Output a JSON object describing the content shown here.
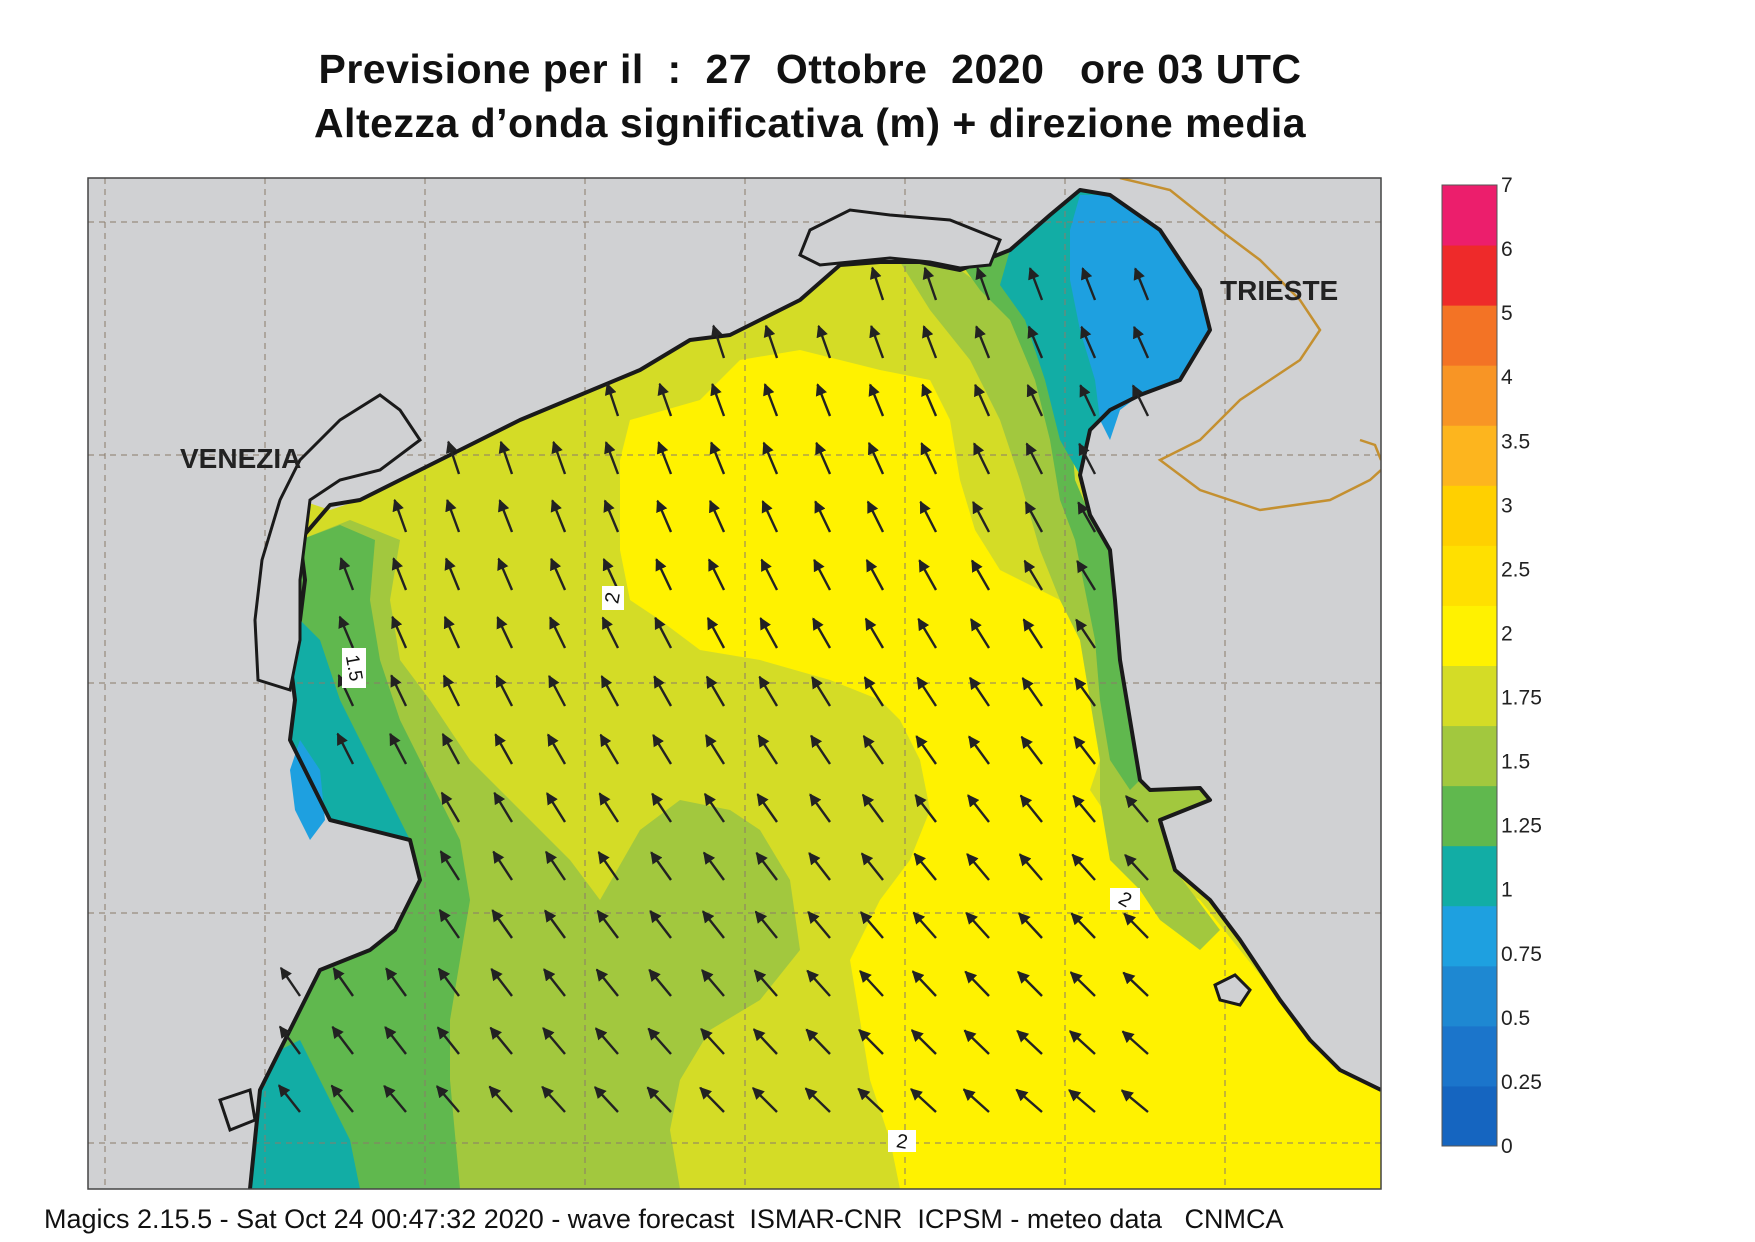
{
  "header": {
    "title_line1": "Previsione per il  :  27  Ottobre  2020   ore 03 UTC",
    "title_line2": "Altezza d’onda significativa (m) + direzione media"
  },
  "labels": {
    "city_venezia": "VENEZIA",
    "city_trieste": "TRIESTE",
    "contour_2_a": "2",
    "contour_1_5": "1.5",
    "contour_2_b": "2",
    "contour_2_c": "2"
  },
  "colorbar": {
    "ticks": [
      "7",
      "6",
      "5",
      "4",
      "3.5",
      "3",
      "2.5",
      "2",
      "1.75",
      "1.5",
      "1.25",
      "1",
      "0.75",
      "0.5",
      "0.25",
      "0"
    ],
    "bands": [
      "#1565c0",
      "#1b75cb",
      "#1e88d2",
      "#1ea0e0",
      "#12ada5",
      "#60b84e",
      "#a2c83e",
      "#d4dc26",
      "#fff200",
      "#ffe000",
      "#ffd000",
      "#fdb51e",
      "#f89525",
      "#f37325",
      "#ee2a2a",
      "#ec1e6c"
    ]
  },
  "footer": {
    "text": "Magics 2.15.5 - Sat Oct 24 00:47:32 2020 - wave forecast  ISMAR-CNR  ICPSM - meteo data   CNMCA"
  },
  "colors": {
    "land": "#d0d1d3",
    "coast": "#1a1a1a",
    "border": "#c49030",
    "arrow": "#222222"
  }
}
